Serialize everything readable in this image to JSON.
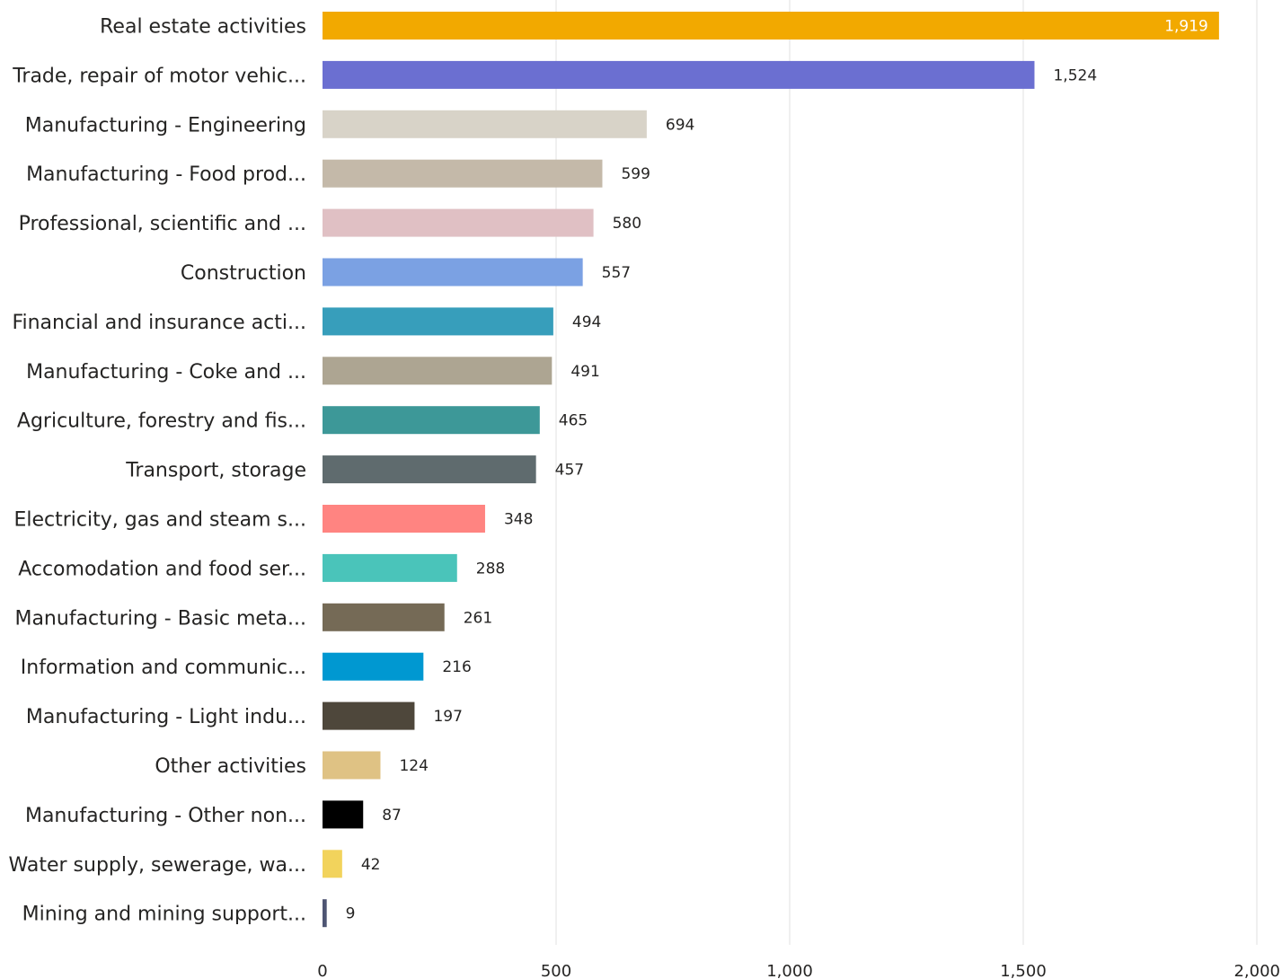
{
  "chart_data": {
    "type": "bar",
    "orientation": "horizontal",
    "categories": [
      "Real estate activities",
      "Trade, repair of motor vehic...",
      "Manufacturing - Engineering",
      "Manufacturing - Food prod...",
      "Professional, scientific and ...",
      "Construction",
      "Financial and insurance acti...",
      "Manufacturing - Coke and ...",
      "Agriculture, forestry and fis...",
      "Transport, storage",
      "Electricity, gas and steam s...",
      "Accomodation and food ser...",
      "Manufacturing - Basic meta...",
      "Information and communic...",
      "Manufacturing - Light indu...",
      "Other activities",
      "Manufacturing - Other non...",
      "Water supply, sewerage, wa...",
      "Mining and mining support..."
    ],
    "values": [
      1919,
      1524,
      694,
      599,
      580,
      557,
      494,
      491,
      465,
      457,
      348,
      288,
      261,
      216,
      197,
      124,
      87,
      42,
      9
    ],
    "value_labels": [
      "1,919",
      "1,524",
      "694",
      "599",
      "580",
      "557",
      "494",
      "491",
      "465",
      "457",
      "348",
      "288",
      "261",
      "216",
      "197",
      "124",
      "87",
      "42",
      "9"
    ],
    "colors": [
      "#F2A900",
      "#6B6FD1",
      "#D8D3C8",
      "#C4B9A9",
      "#E0C0C4",
      "#7BA1E3",
      "#379EBB",
      "#ADA592",
      "#3D9898",
      "#5F6B6E",
      "#FF8481",
      "#4AC4BA",
      "#756A56",
      "#0098D1",
      "#4E473B",
      "#DFC284",
      "#000000",
      "#F2D35C",
      "#4E5573"
    ],
    "xlim": [
      0,
      2000
    ],
    "xticks": [
      0,
      500,
      1000,
      1500,
      2000
    ],
    "xtick_labels": [
      "0",
      "500",
      "1,000",
      "1,500",
      "2,000"
    ],
    "grid": true
  }
}
